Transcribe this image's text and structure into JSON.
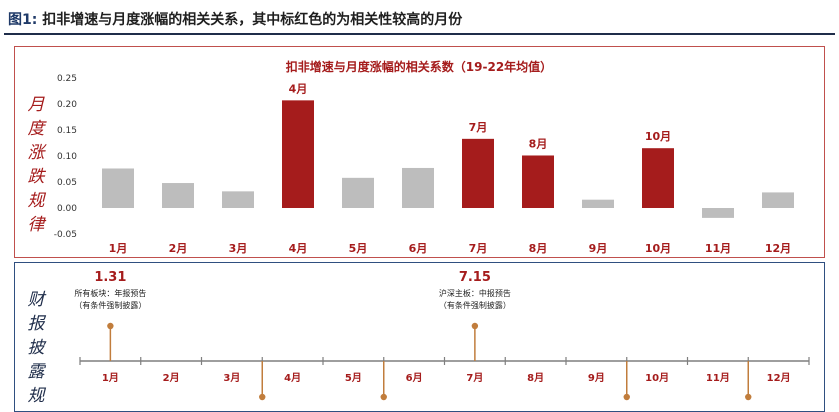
{
  "figure": {
    "label": "图1:",
    "title": "扣非增速与月度涨幅的相关关系，其中标红色的为相关性较高的月份"
  },
  "colors": {
    "highlight": "#a51c1c",
    "normal": "#bdbdbd",
    "accent_line": "#c17d3c",
    "top_border": "#c0504d",
    "bottom_border": "#2f4f80"
  },
  "top_panel": {
    "side_label": [
      "月",
      "度",
      "涨",
      "跌",
      "规",
      "律"
    ]
  },
  "bottom_panel": {
    "side_label": [
      "财",
      "报",
      "披",
      "露",
      "规"
    ],
    "timeline_months": [
      "1月",
      "2月",
      "3月",
      "4月",
      "5月",
      "6月",
      "7月",
      "8月",
      "9月",
      "10月",
      "11月",
      "12月"
    ],
    "events": [
      {
        "date": "1.31",
        "line1": "所有板块：年报预告",
        "line2": "（有条件强制披露）",
        "month_index": 1
      },
      {
        "date": "7.15",
        "line1": "沪深主板：中报预告",
        "line2": "（有条件强制披露）",
        "month_index": 7
      }
    ],
    "below_markers": [
      3.5,
      5.5,
      9.5,
      11.5
    ]
  },
  "chart_data": {
    "type": "bar",
    "title": "扣非增速与月度涨幅的相关系数（19-22年均值）",
    "categories": [
      "1月",
      "2月",
      "3月",
      "4月",
      "5月",
      "6月",
      "7月",
      "8月",
      "9月",
      "10月",
      "11月",
      "12月"
    ],
    "values": [
      0.076,
      0.048,
      0.032,
      0.207,
      0.058,
      0.077,
      0.133,
      0.101,
      0.016,
      0.115,
      -0.019,
      0.03
    ],
    "highlighted": [
      false,
      false,
      false,
      true,
      false,
      false,
      true,
      true,
      false,
      true,
      false,
      false
    ],
    "data_labels": [
      "",
      "",
      "",
      "4月",
      "",
      "",
      "7月",
      "8月",
      "",
      "10月",
      "",
      ""
    ],
    "yticks": [
      "0.25",
      "0.20",
      "0.15",
      "0.10",
      "0.05",
      "0.00",
      "-0.05"
    ],
    "ylim": [
      -0.05,
      0.25
    ],
    "grid": false,
    "legend": "none"
  }
}
